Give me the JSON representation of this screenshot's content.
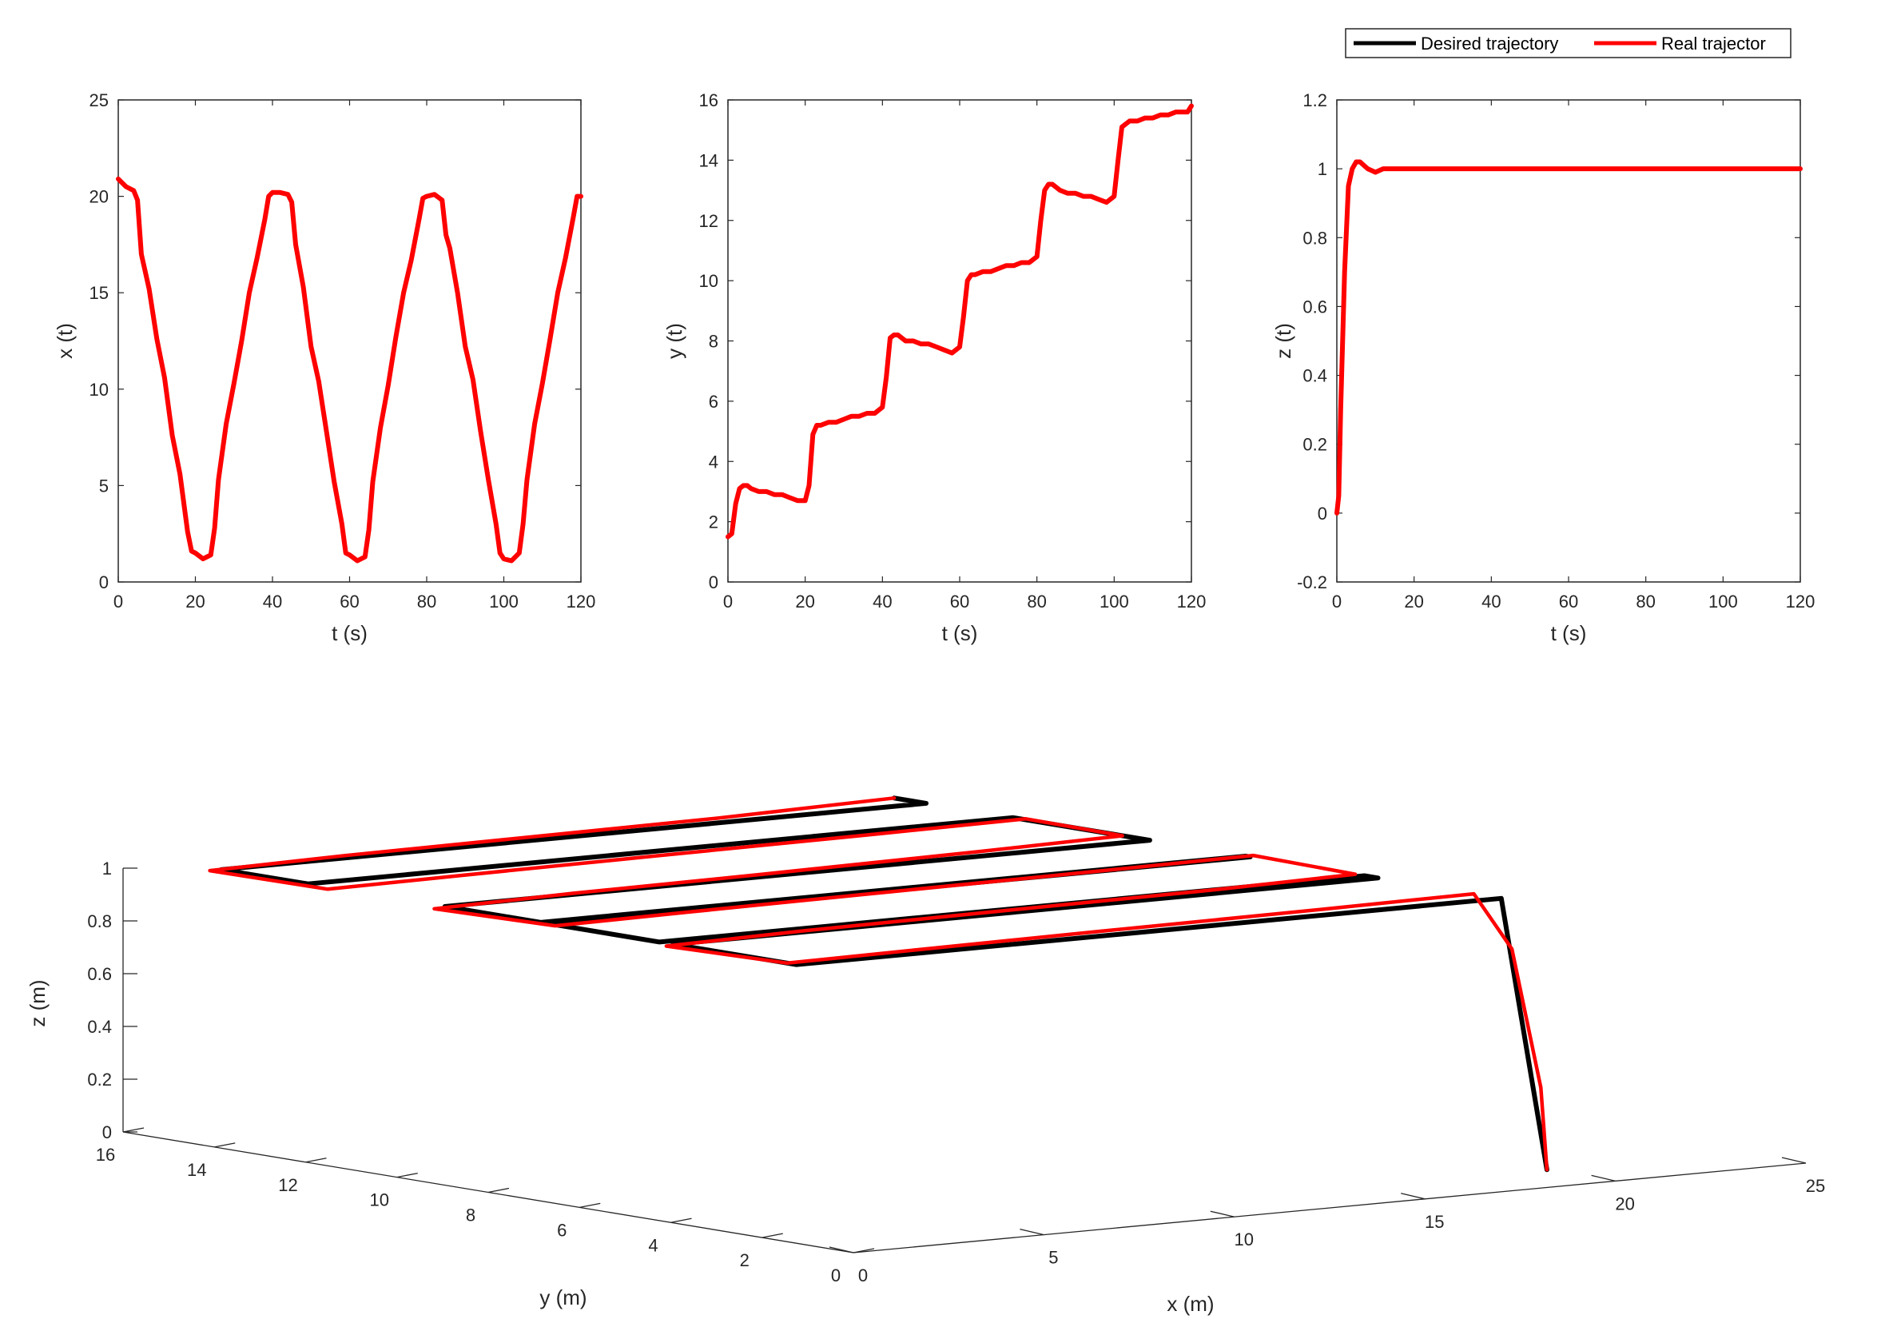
{
  "colors": {
    "desired": "#000000",
    "real": "#ff0000",
    "axis": "#262626"
  },
  "legend": {
    "placement": "top-right",
    "entries": [
      {
        "label": "Desired trajectory",
        "color": "#000000"
      },
      {
        "label": "Real trajector",
        "color": "#ff0000"
      }
    ]
  },
  "chart_data": [
    {
      "type": "line",
      "id": "x",
      "xlabel": "t (s)",
      "ylabel": "x (t)",
      "xlim": [
        0,
        120
      ],
      "ylim": [
        0,
        25
      ],
      "xticks": [
        0,
        20,
        40,
        60,
        80,
        100,
        120
      ],
      "yticks": [
        0,
        5,
        10,
        15,
        20,
        25
      ],
      "series": [
        {
          "color": "#ff0000",
          "x": [
            0,
            2,
            4,
            5,
            6,
            8,
            10,
            12,
            14,
            16,
            18,
            19,
            20,
            22,
            24,
            25,
            26,
            28,
            30,
            32,
            34,
            36,
            38,
            39,
            40,
            42,
            44,
            45,
            46,
            48,
            50,
            52,
            54,
            56,
            58,
            59,
            60,
            62,
            64,
            65,
            66,
            68,
            70,
            72,
            74,
            76,
            78,
            79,
            80,
            82,
            84,
            85,
            86,
            88,
            90,
            92,
            94,
            96,
            98,
            99,
            100,
            102,
            104,
            105,
            106,
            108,
            110,
            112,
            114,
            116,
            118,
            119,
            120
          ],
          "y": [
            20.9,
            20.5,
            20.3,
            19.8,
            17.0,
            15.2,
            12.6,
            10.6,
            7.6,
            5.6,
            2.6,
            1.6,
            1.5,
            1.2,
            1.4,
            2.8,
            5.3,
            8.2,
            10.3,
            12.5,
            15.0,
            16.8,
            18.8,
            20.0,
            20.2,
            20.2,
            20.1,
            19.7,
            17.5,
            15.3,
            12.2,
            10.4,
            7.8,
            5.2,
            3.0,
            1.5,
            1.4,
            1.1,
            1.3,
            2.7,
            5.2,
            8.0,
            10.2,
            12.7,
            15.0,
            16.7,
            18.8,
            19.9,
            20.0,
            20.1,
            19.8,
            18.0,
            17.3,
            15.0,
            12.2,
            10.5,
            7.8,
            5.3,
            3.0,
            1.5,
            1.2,
            1.1,
            1.5,
            3.0,
            5.3,
            8.2,
            10.3,
            12.6,
            15.0,
            16.8,
            18.9,
            20.0,
            20.0
          ]
        }
      ]
    },
    {
      "type": "line",
      "id": "y",
      "xlabel": "t (s)",
      "ylabel": "y (t)",
      "xlim": [
        0,
        120
      ],
      "ylim": [
        0,
        16
      ],
      "xticks": [
        0,
        20,
        40,
        60,
        80,
        100,
        120
      ],
      "yticks": [
        0,
        2,
        4,
        6,
        8,
        10,
        12,
        14,
        16
      ],
      "series": [
        {
          "color": "#ff0000",
          "x": [
            0,
            1,
            2,
            3,
            4,
            5,
            6,
            8,
            10,
            12,
            14,
            16,
            18,
            20,
            21,
            22,
            23,
            24,
            26,
            28,
            30,
            32,
            34,
            36,
            38,
            40,
            41,
            42,
            43,
            44,
            46,
            48,
            50,
            52,
            54,
            56,
            58,
            60,
            61,
            62,
            63,
            64,
            66,
            68,
            70,
            72,
            74,
            76,
            78,
            80,
            81,
            82,
            83,
            84,
            86,
            88,
            90,
            92,
            94,
            96,
            98,
            100,
            101,
            102,
            103,
            104,
            106,
            108,
            110,
            112,
            114,
            116,
            118,
            119,
            120
          ],
          "y": [
            1.5,
            1.6,
            2.6,
            3.1,
            3.2,
            3.2,
            3.1,
            3.0,
            3.0,
            2.9,
            2.9,
            2.8,
            2.7,
            2.7,
            3.2,
            4.9,
            5.2,
            5.2,
            5.3,
            5.3,
            5.4,
            5.5,
            5.5,
            5.6,
            5.6,
            5.8,
            6.8,
            8.1,
            8.2,
            8.2,
            8.0,
            8.0,
            7.9,
            7.9,
            7.8,
            7.7,
            7.6,
            7.8,
            8.8,
            10.0,
            10.2,
            10.2,
            10.3,
            10.3,
            10.4,
            10.5,
            10.5,
            10.6,
            10.6,
            10.8,
            12.0,
            13.0,
            13.2,
            13.2,
            13.0,
            12.9,
            12.9,
            12.8,
            12.8,
            12.7,
            12.6,
            12.8,
            14.0,
            15.1,
            15.2,
            15.3,
            15.3,
            15.4,
            15.4,
            15.5,
            15.5,
            15.6,
            15.6,
            15.6,
            15.8
          ]
        }
      ]
    },
    {
      "type": "line",
      "id": "z",
      "xlabel": "t (s)",
      "ylabel": "z (t)",
      "xlim": [
        0,
        120
      ],
      "ylim": [
        -0.2,
        1.2
      ],
      "xticks": [
        0,
        20,
        40,
        60,
        80,
        100,
        120
      ],
      "yticks": [
        -0.2,
        0,
        0.2,
        0.4,
        0.6,
        0.8,
        1,
        1.2
      ],
      "series": [
        {
          "color": "#ff0000",
          "x": [
            0,
            0.5,
            1,
            2,
            3,
            4,
            5,
            6,
            7,
            8,
            10,
            12,
            14,
            16,
            18,
            20,
            25,
            30,
            35,
            40,
            45,
            50,
            55,
            60,
            65,
            70,
            75,
            80,
            85,
            90,
            95,
            100,
            105,
            110,
            115,
            120
          ],
          "y": [
            0.0,
            0.05,
            0.3,
            0.7,
            0.95,
            1.0,
            1.02,
            1.02,
            1.01,
            1.0,
            0.99,
            1.0,
            1.0,
            1.0,
            1.0,
            1.0,
            1.0,
            1.0,
            1.0,
            1.0,
            1.0,
            1.0,
            1.0,
            1.0,
            1.0,
            1.0,
            1.0,
            1.0,
            1.0,
            1.0,
            1.0,
            1.0,
            1.0,
            1.0,
            1.0,
            1.0
          ]
        }
      ]
    },
    {
      "type": "line3d",
      "id": "xyz",
      "xlabel": "x (m)",
      "ylabel": "y (m)",
      "zlabel": "z (m)",
      "xlim": [
        0,
        25
      ],
      "ylim": [
        0,
        16
      ],
      "zlim": [
        0,
        1
      ],
      "xticks": [
        0,
        5,
        10,
        15,
        20,
        25
      ],
      "yticks": [
        0,
        2,
        4,
        6,
        8,
        10,
        12,
        14,
        16
      ],
      "zticks": [
        0,
        0.2,
        0.4,
        0.6,
        0.8,
        1
      ],
      "series": [
        {
          "name": "Desired trajectory",
          "color": "#000000",
          "x": [
            20.0,
            20.0,
            1.5,
            1.5,
            20.0,
            20.0,
            1.5,
            1.5,
            20.0,
            20.0,
            1.5,
            1.5,
            20.0,
            20.0,
            1.5,
            1.5,
            20.0,
            20.0
          ],
          "y": [
            1.5,
            2.5,
            2.5,
            5.2,
            5.2,
            5.5,
            5.5,
            8.1,
            8.1,
            8.0,
            8.0,
            10.2,
            10.2,
            13.2,
            13.2,
            15.1,
            15.1,
            15.8
          ],
          "z": [
            0.0,
            1.0,
            1.0,
            1.0,
            1.0,
            1.0,
            1.0,
            1.0,
            1.0,
            1.0,
            1.0,
            1.0,
            1.0,
            1.0,
            1.0,
            1.0,
            1.0,
            1.0
          ]
        },
        {
          "name": "Real trajector",
          "color": "#ff0000",
          "x": [
            20.0,
            20.2,
            20.4,
            20.0,
            16.0,
            10.0,
            5.0,
            1.5,
            1.2,
            5.0,
            10.0,
            16.0,
            20.0,
            20.2,
            16.0,
            10.0,
            5.0,
            1.4,
            1.1,
            5.0,
            10.0,
            16.0,
            20.0,
            20.1,
            16.0,
            10.0,
            5.0,
            1.3,
            1.2,
            5.0,
            10.0,
            15.0,
            20.0
          ],
          "y": [
            1.5,
            1.8,
            2.6,
            3.1,
            3.0,
            2.9,
            2.8,
            2.7,
            5.1,
            5.3,
            5.4,
            5.5,
            5.7,
            8.1,
            8.0,
            7.9,
            7.8,
            7.7,
            10.1,
            10.3,
            10.4,
            10.6,
            10.8,
            13.0,
            12.9,
            12.8,
            12.7,
            12.6,
            15.1,
            15.3,
            15.4,
            15.5,
            15.8
          ],
          "z": [
            0.0,
            0.3,
            0.8,
            1.0,
            1.0,
            1.0,
            1.0,
            1.0,
            1.0,
            1.0,
            1.0,
            1.0,
            1.0,
            1.0,
            1.0,
            1.0,
            1.0,
            1.0,
            1.0,
            1.0,
            1.0,
            1.0,
            1.0,
            1.0,
            1.0,
            1.0,
            1.0,
            1.0,
            1.0,
            1.0,
            1.0,
            1.0,
            1.0
          ]
        }
      ]
    }
  ]
}
